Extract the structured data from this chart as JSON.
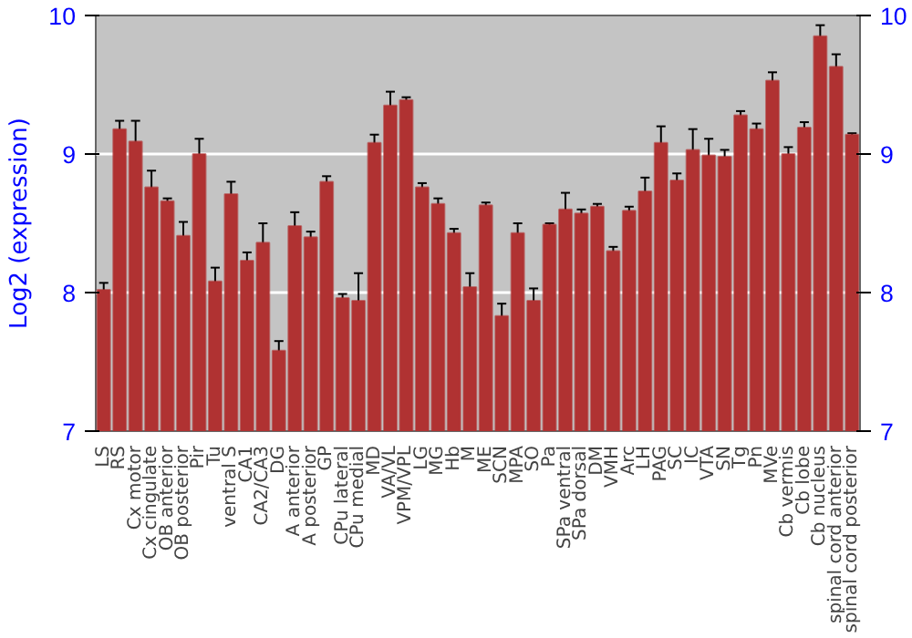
{
  "chart_data": {
    "type": "bar",
    "ylabel": "Log2 (expression)",
    "categories": [
      "LS",
      "RS",
      "Cx motor",
      "Cx cingulate",
      "OB anterior",
      "OB posterior",
      "Pir",
      "Tu",
      "ventral S",
      "CA1",
      "CA2/CA3",
      "DG",
      "A anterior",
      "A posterior",
      "GP",
      "CPu lateral",
      "CPu medial",
      "MD",
      "VA/VL",
      "VPM/VPL",
      "LG",
      "MG",
      "Hb",
      "M",
      "ME",
      "SCN",
      "MPA",
      "SO",
      "Pa",
      "SPa ventral",
      "SPa dorsal",
      "DM",
      "VMH",
      "Arc",
      "LH",
      "PAG",
      "SC",
      "IC",
      "VTA",
      "SN",
      "Tg",
      "Pn",
      "MVe",
      "Cb vermis",
      "Cb lobe",
      "Cb nucleus",
      "spinal cord anterior",
      "spinal cord posterior"
    ],
    "values": [
      8.02,
      9.18,
      9.09,
      8.76,
      8.66,
      8.41,
      9.0,
      8.08,
      8.71,
      8.23,
      8.36,
      7.58,
      8.48,
      8.4,
      8.8,
      7.96,
      7.94,
      9.08,
      9.35,
      9.39,
      8.76,
      8.64,
      8.43,
      8.04,
      8.63,
      7.83,
      8.43,
      7.94,
      8.49,
      8.6,
      8.57,
      8.62,
      8.3,
      8.59,
      8.73,
      9.08,
      8.81,
      9.03,
      8.99,
      8.98,
      9.28,
      9.18,
      9.53,
      9.0,
      9.19,
      9.85,
      9.63,
      9.14
    ],
    "errors": [
      0.05,
      0.06,
      0.15,
      0.12,
      0.02,
      0.1,
      0.11,
      0.1,
      0.09,
      0.06,
      0.14,
      0.07,
      0.1,
      0.04,
      0.04,
      0.03,
      0.2,
      0.06,
      0.1,
      0.02,
      0.03,
      0.04,
      0.03,
      0.1,
      0.02,
      0.09,
      0.07,
      0.09,
      0.01,
      0.12,
      0.03,
      0.02,
      0.03,
      0.03,
      0.1,
      0.12,
      0.05,
      0.15,
      0.12,
      0.05,
      0.03,
      0.04,
      0.06,
      0.05,
      0.04,
      0.08,
      0.09,
      0.01
    ],
    "color": "#b03232",
    "ylim": [
      7,
      10
    ],
    "yticks": [
      7,
      8,
      9,
      10
    ],
    "y2lim": [
      7,
      10
    ],
    "y2ticks": [
      7,
      8,
      9,
      10
    ],
    "grid": "y"
  }
}
